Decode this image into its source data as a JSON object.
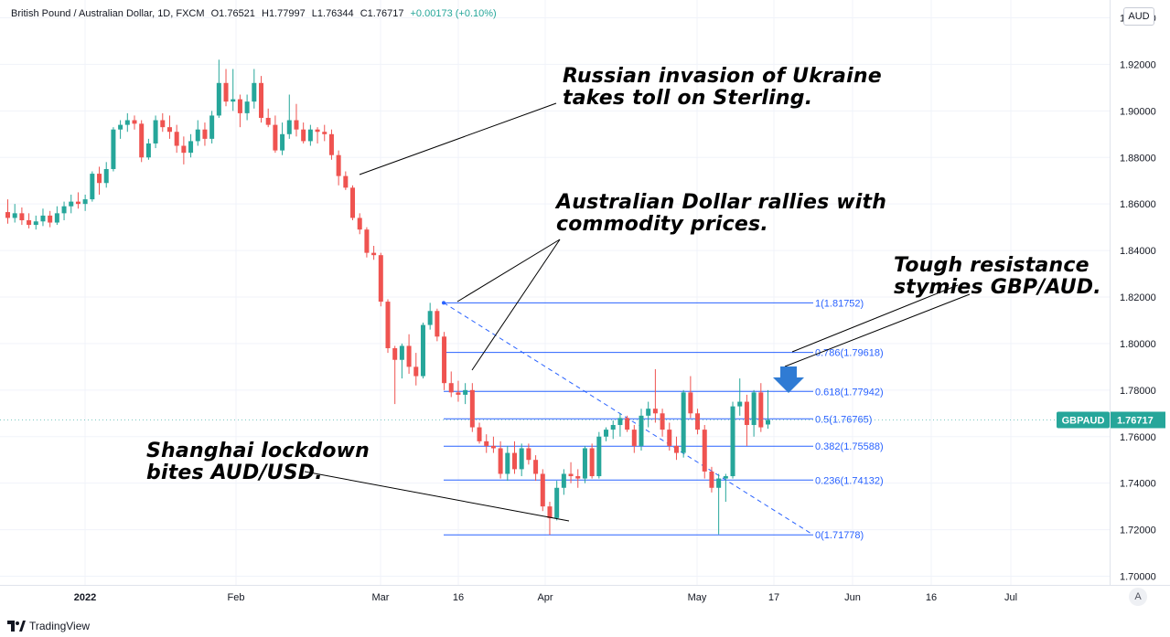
{
  "header": {
    "symbol_desc": "British Pound / Australian Dollar, 1D, FXCM",
    "open_label": "O",
    "open": "1.76521",
    "high_label": "H",
    "high": "1.77997",
    "low_label": "L",
    "low": "1.76344",
    "close_label": "C",
    "close": "1.76717",
    "change": "+0.00173 (+0.10%)"
  },
  "currency_button": "AUD",
  "auto_button": "A",
  "brand": "TradingView",
  "colors": {
    "up": "#26a69a",
    "down": "#ef5350",
    "fib": "#2962ff",
    "price_tag": "#26a69a",
    "arrow": "#2f7bd4"
  },
  "chart_data": {
    "type": "candlestick",
    "price_axis": {
      "ylim": [
        1.695,
        1.9418
      ],
      "ticks": [
        "1.70000",
        "1.72000",
        "1.74000",
        "1.76000",
        "1.78000",
        "1.80000",
        "1.82000",
        "1.84000",
        "1.86000",
        "1.88000",
        "1.90000",
        "1.92000",
        "1.94000"
      ]
    },
    "time_axis": {
      "ticks": [
        "2022",
        "Feb",
        "Mar",
        "16",
        "Apr",
        "May",
        "17",
        "Jun",
        "16",
        "Jul"
      ]
    },
    "last_price": {
      "label": "GBPAUD",
      "value": "1.76717"
    },
    "fibonacci": [
      {
        "label": "1(1.81752)",
        "value": 1.81752
      },
      {
        "label": "0.786(1.79618)",
        "value": 1.79618
      },
      {
        "label": "0.618(1.77942)",
        "value": 1.77942
      },
      {
        "label": "0.5(1.76765)",
        "value": 1.76765
      },
      {
        "label": "0.382(1.75588)",
        "value": 1.75588
      },
      {
        "label": "0.236(1.74132)",
        "value": 1.74132
      },
      {
        "label": "0(1.71778)",
        "value": 1.71778
      }
    ],
    "annotations": [
      {
        "lines": [
          "Russian invasion of Ukraine",
          "takes toll on Sterling."
        ]
      },
      {
        "lines": [
          "Australian Dollar rallies with",
          "commodity prices."
        ]
      },
      {
        "lines": [
          "Tough resistance",
          "stymies GBP/AUD."
        ]
      },
      {
        "lines": [
          "Shanghai lockdown",
          "bites AUD/USD."
        ]
      }
    ],
    "candles": [
      {
        "o": 1.8565,
        "h": 1.862,
        "l": 1.8515,
        "c": 1.854
      },
      {
        "o": 1.854,
        "h": 1.86,
        "l": 1.852,
        "c": 1.856
      },
      {
        "o": 1.856,
        "h": 1.8585,
        "l": 1.851,
        "c": 1.853
      },
      {
        "o": 1.853,
        "h": 1.856,
        "l": 1.8495,
        "c": 1.851
      },
      {
        "o": 1.851,
        "h": 1.855,
        "l": 1.849,
        "c": 1.8525
      },
      {
        "o": 1.8525,
        "h": 1.858,
        "l": 1.8505,
        "c": 1.855
      },
      {
        "o": 1.855,
        "h": 1.857,
        "l": 1.85,
        "c": 1.852
      },
      {
        "o": 1.852,
        "h": 1.859,
        "l": 1.851,
        "c": 1.856
      },
      {
        "o": 1.856,
        "h": 1.861,
        "l": 1.853,
        "c": 1.859
      },
      {
        "o": 1.859,
        "h": 1.864,
        "l": 1.856,
        "c": 1.861
      },
      {
        "o": 1.861,
        "h": 1.865,
        "l": 1.858,
        "c": 1.86
      },
      {
        "o": 1.86,
        "h": 1.864,
        "l": 1.857,
        "c": 1.862
      },
      {
        "o": 1.862,
        "h": 1.874,
        "l": 1.861,
        "c": 1.873
      },
      {
        "o": 1.873,
        "h": 1.876,
        "l": 1.864,
        "c": 1.869
      },
      {
        "o": 1.869,
        "h": 1.878,
        "l": 1.867,
        "c": 1.875
      },
      {
        "o": 1.875,
        "h": 1.893,
        "l": 1.874,
        "c": 1.892
      },
      {
        "o": 1.892,
        "h": 1.896,
        "l": 1.888,
        "c": 1.894
      },
      {
        "o": 1.894,
        "h": 1.899,
        "l": 1.891,
        "c": 1.896
      },
      {
        "o": 1.896,
        "h": 1.898,
        "l": 1.892,
        "c": 1.8945
      },
      {
        "o": 1.8945,
        "h": 1.896,
        "l": 1.878,
        "c": 1.88
      },
      {
        "o": 1.88,
        "h": 1.888,
        "l": 1.879,
        "c": 1.886
      },
      {
        "o": 1.886,
        "h": 1.898,
        "l": 1.884,
        "c": 1.896
      },
      {
        "o": 1.896,
        "h": 1.899,
        "l": 1.891,
        "c": 1.893
      },
      {
        "o": 1.893,
        "h": 1.898,
        "l": 1.888,
        "c": 1.891
      },
      {
        "o": 1.891,
        "h": 1.894,
        "l": 1.882,
        "c": 1.885
      },
      {
        "o": 1.885,
        "h": 1.889,
        "l": 1.877,
        "c": 1.882
      },
      {
        "o": 1.882,
        "h": 1.89,
        "l": 1.88,
        "c": 1.887
      },
      {
        "o": 1.887,
        "h": 1.896,
        "l": 1.885,
        "c": 1.892
      },
      {
        "o": 1.892,
        "h": 1.895,
        "l": 1.885,
        "c": 1.888
      },
      {
        "o": 1.888,
        "h": 1.9,
        "l": 1.886,
        "c": 1.898
      },
      {
        "o": 1.898,
        "h": 1.922,
        "l": 1.897,
        "c": 1.912
      },
      {
        "o": 1.912,
        "h": 1.918,
        "l": 1.902,
        "c": 1.904
      },
      {
        "o": 1.904,
        "h": 1.918,
        "l": 1.9,
        "c": 1.905
      },
      {
        "o": 1.905,
        "h": 1.907,
        "l": 1.893,
        "c": 1.899
      },
      {
        "o": 1.899,
        "h": 1.907,
        "l": 1.896,
        "c": 1.904
      },
      {
        "o": 1.904,
        "h": 1.918,
        "l": 1.901,
        "c": 1.912
      },
      {
        "o": 1.912,
        "h": 1.915,
        "l": 1.895,
        "c": 1.897
      },
      {
        "o": 1.897,
        "h": 1.901,
        "l": 1.893,
        "c": 1.894
      },
      {
        "o": 1.894,
        "h": 1.898,
        "l": 1.882,
        "c": 1.883
      },
      {
        "o": 1.883,
        "h": 1.895,
        "l": 1.881,
        "c": 1.89
      },
      {
        "o": 1.89,
        "h": 1.907,
        "l": 1.888,
        "c": 1.896
      },
      {
        "o": 1.896,
        "h": 1.903,
        "l": 1.889,
        "c": 1.892
      },
      {
        "o": 1.892,
        "h": 1.895,
        "l": 1.886,
        "c": 1.887
      },
      {
        "o": 1.887,
        "h": 1.894,
        "l": 1.885,
        "c": 1.892
      },
      {
        "o": 1.892,
        "h": 1.893,
        "l": 1.886,
        "c": 1.891
      },
      {
        "o": 1.891,
        "h": 1.894,
        "l": 1.887,
        "c": 1.89
      },
      {
        "o": 1.89,
        "h": 1.892,
        "l": 1.879,
        "c": 1.881
      },
      {
        "o": 1.881,
        "h": 1.883,
        "l": 1.868,
        "c": 1.872
      },
      {
        "o": 1.872,
        "h": 1.874,
        "l": 1.866,
        "c": 1.867
      },
      {
        "o": 1.867,
        "h": 1.868,
        "l": 1.853,
        "c": 1.854
      },
      {
        "o": 1.854,
        "h": 1.856,
        "l": 1.847,
        "c": 1.849
      },
      {
        "o": 1.849,
        "h": 1.85,
        "l": 1.837,
        "c": 1.839
      },
      {
        "o": 1.839,
        "h": 1.842,
        "l": 1.836,
        "c": 1.838
      },
      {
        "o": 1.838,
        "h": 1.839,
        "l": 1.816,
        "c": 1.818
      },
      {
        "o": 1.818,
        "h": 1.819,
        "l": 1.796,
        "c": 1.798
      },
      {
        "o": 1.798,
        "h": 1.799,
        "l": 1.774,
        "c": 1.793
      },
      {
        "o": 1.793,
        "h": 1.8,
        "l": 1.785,
        "c": 1.799
      },
      {
        "o": 1.799,
        "h": 1.804,
        "l": 1.787,
        "c": 1.79
      },
      {
        "o": 1.79,
        "h": 1.796,
        "l": 1.782,
        "c": 1.786
      },
      {
        "o": 1.786,
        "h": 1.809,
        "l": 1.785,
        "c": 1.808
      },
      {
        "o": 1.808,
        "h": 1.8175,
        "l": 1.806,
        "c": 1.814
      },
      {
        "o": 1.814,
        "h": 1.815,
        "l": 1.801,
        "c": 1.803
      },
      {
        "o": 1.803,
        "h": 1.805,
        "l": 1.78,
        "c": 1.783
      },
      {
        "o": 1.783,
        "h": 1.788,
        "l": 1.777,
        "c": 1.779
      },
      {
        "o": 1.779,
        "h": 1.784,
        "l": 1.775,
        "c": 1.778
      },
      {
        "o": 1.778,
        "h": 1.783,
        "l": 1.774,
        "c": 1.78
      },
      {
        "o": 1.78,
        "h": 1.783,
        "l": 1.762,
        "c": 1.764
      },
      {
        "o": 1.764,
        "h": 1.766,
        "l": 1.757,
        "c": 1.758
      },
      {
        "o": 1.758,
        "h": 1.761,
        "l": 1.753,
        "c": 1.756
      },
      {
        "o": 1.756,
        "h": 1.76,
        "l": 1.753,
        "c": 1.755
      },
      {
        "o": 1.755,
        "h": 1.758,
        "l": 1.742,
        "c": 1.744
      },
      {
        "o": 1.744,
        "h": 1.756,
        "l": 1.741,
        "c": 1.753
      },
      {
        "o": 1.753,
        "h": 1.758,
        "l": 1.744,
        "c": 1.746
      },
      {
        "o": 1.746,
        "h": 1.757,
        "l": 1.743,
        "c": 1.755
      },
      {
        "o": 1.755,
        "h": 1.757,
        "l": 1.748,
        "c": 1.75
      },
      {
        "o": 1.75,
        "h": 1.752,
        "l": 1.741,
        "c": 1.744
      },
      {
        "o": 1.744,
        "h": 1.746,
        "l": 1.728,
        "c": 1.73
      },
      {
        "o": 1.73,
        "h": 1.732,
        "l": 1.7178,
        "c": 1.725
      },
      {
        "o": 1.725,
        "h": 1.741,
        "l": 1.724,
        "c": 1.738
      },
      {
        "o": 1.738,
        "h": 1.746,
        "l": 1.735,
        "c": 1.744
      },
      {
        "o": 1.744,
        "h": 1.749,
        "l": 1.74,
        "c": 1.743
      },
      {
        "o": 1.743,
        "h": 1.746,
        "l": 1.738,
        "c": 1.742
      },
      {
        "o": 1.742,
        "h": 1.756,
        "l": 1.74,
        "c": 1.755
      },
      {
        "o": 1.755,
        "h": 1.757,
        "l": 1.742,
        "c": 1.743
      },
      {
        "o": 1.743,
        "h": 1.762,
        "l": 1.742,
        "c": 1.76
      },
      {
        "o": 1.76,
        "h": 1.764,
        "l": 1.758,
        "c": 1.763
      },
      {
        "o": 1.763,
        "h": 1.767,
        "l": 1.759,
        "c": 1.765
      },
      {
        "o": 1.765,
        "h": 1.77,
        "l": 1.76,
        "c": 1.768
      },
      {
        "o": 1.768,
        "h": 1.769,
        "l": 1.762,
        "c": 1.763
      },
      {
        "o": 1.763,
        "h": 1.765,
        "l": 1.753,
        "c": 1.756
      },
      {
        "o": 1.756,
        "h": 1.772,
        "l": 1.754,
        "c": 1.769
      },
      {
        "o": 1.769,
        "h": 1.775,
        "l": 1.764,
        "c": 1.772
      },
      {
        "o": 1.772,
        "h": 1.789,
        "l": 1.766,
        "c": 1.77
      },
      {
        "o": 1.77,
        "h": 1.772,
        "l": 1.76,
        "c": 1.763
      },
      {
        "o": 1.763,
        "h": 1.766,
        "l": 1.754,
        "c": 1.756
      },
      {
        "o": 1.756,
        "h": 1.76,
        "l": 1.75,
        "c": 1.753
      },
      {
        "o": 1.753,
        "h": 1.78,
        "l": 1.751,
        "c": 1.779
      },
      {
        "o": 1.779,
        "h": 1.786,
        "l": 1.768,
        "c": 1.77
      },
      {
        "o": 1.77,
        "h": 1.772,
        "l": 1.761,
        "c": 1.763
      },
      {
        "o": 1.763,
        "h": 1.765,
        "l": 1.742,
        "c": 1.745
      },
      {
        "o": 1.745,
        "h": 1.747,
        "l": 1.736,
        "c": 1.738
      },
      {
        "o": 1.738,
        "h": 1.744,
        "l": 1.718,
        "c": 1.742
      },
      {
        "o": 1.742,
        "h": 1.744,
        "l": 1.732,
        "c": 1.743
      },
      {
        "o": 1.743,
        "h": 1.775,
        "l": 1.742,
        "c": 1.773
      },
      {
        "o": 1.773,
        "h": 1.785,
        "l": 1.769,
        "c": 1.775
      },
      {
        "o": 1.775,
        "h": 1.778,
        "l": 1.756,
        "c": 1.765
      },
      {
        "o": 1.765,
        "h": 1.78,
        "l": 1.76,
        "c": 1.779
      },
      {
        "o": 1.779,
        "h": 1.783,
        "l": 1.762,
        "c": 1.764
      },
      {
        "o": 1.7652,
        "h": 1.78,
        "l": 1.7634,
        "c": 1.7672
      }
    ]
  }
}
